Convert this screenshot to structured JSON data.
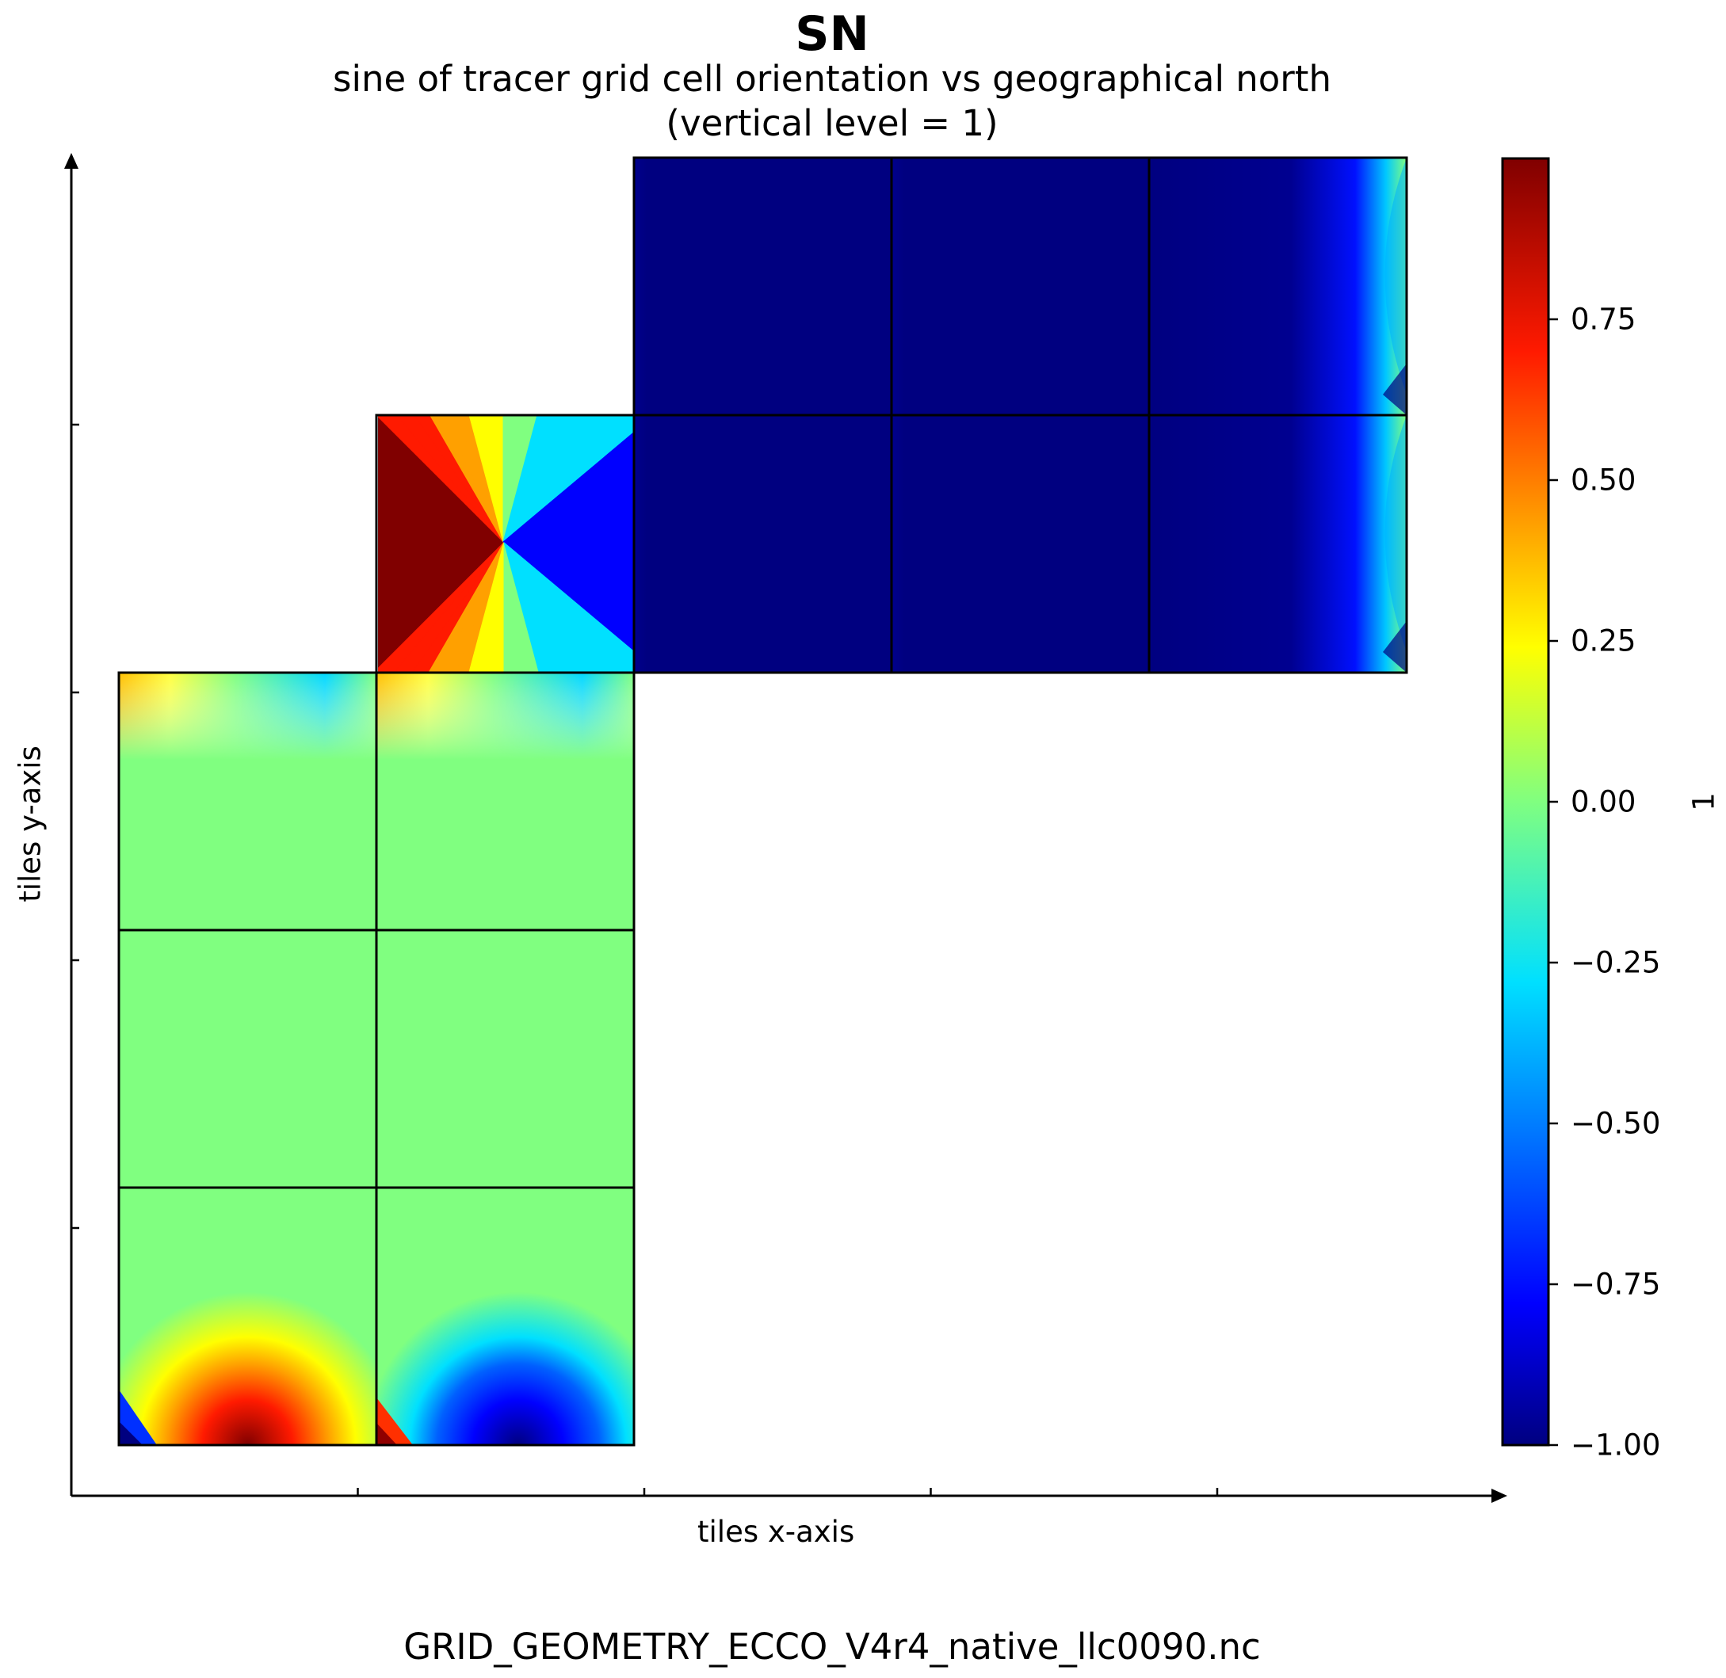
{
  "chart_data": {
    "type": "heatmap",
    "title": "SN",
    "subtitle": "sine of tracer grid cell orientation vs geographical north",
    "subtitle2": "(vertical level = 1)",
    "xlabel": "tiles x-axis",
    "ylabel": "tiles y-axis",
    "footer": "GRID_GEOMETRY_ECCO_V4r4_native_llc0090.nc",
    "colorbar": {
      "label": "1",
      "colormap": "jet",
      "range": [
        -1.0,
        1.0
      ],
      "ticks": [
        "0.75",
        "0.50",
        "0.25",
        "0.00",
        "−0.25",
        "−0.50",
        "−0.75",
        "−1.00"
      ],
      "tick_values": [
        0.75,
        0.5,
        0.25,
        0.0,
        -0.25,
        -0.5,
        -0.75,
        -1.0
      ]
    },
    "grid": {
      "columns": 5,
      "rows": 5,
      "x_ticks": 4,
      "y_ticks": 4
    },
    "tiles": [
      {
        "col": 0,
        "row": 0,
        "pattern": "bottom-arc-positive"
      },
      {
        "col": 1,
        "row": 0,
        "pattern": "bottom-arc-negative"
      },
      {
        "col": 0,
        "row": 1,
        "pattern": "uniform-zero"
      },
      {
        "col": 1,
        "row": 1,
        "pattern": "uniform-zero"
      },
      {
        "col": 0,
        "row": 2,
        "pattern": "top-edge"
      },
      {
        "col": 1,
        "row": 2,
        "pattern": "top-edge"
      },
      {
        "col": 1,
        "row": 3,
        "pattern": "polar-cap"
      },
      {
        "col": 2,
        "row": 3,
        "pattern": "uniform-negative"
      },
      {
        "col": 3,
        "row": 3,
        "pattern": "uniform-negative"
      },
      {
        "col": 4,
        "row": 3,
        "pattern": "right-edge"
      },
      {
        "col": 2,
        "row": 4,
        "pattern": "uniform-negative"
      },
      {
        "col": 3,
        "row": 4,
        "pattern": "uniform-negative"
      },
      {
        "col": 4,
        "row": 4,
        "pattern": "right-edge"
      }
    ],
    "colors": {
      "dark_red": "#800000",
      "red": "#ff1a00",
      "orange": "#ffa000",
      "yellow": "#ffff00",
      "green": "#80ff80",
      "cyan": "#00e0ff",
      "blue": "#0000ff",
      "navy": "#000080"
    }
  }
}
